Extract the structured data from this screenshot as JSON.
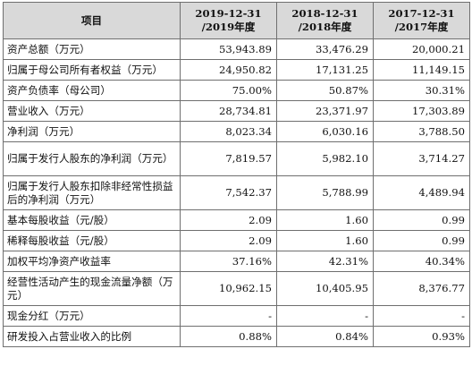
{
  "table": {
    "headers": {
      "item": "项目",
      "col1_line1": "2019-12-31",
      "col1_line2": "/2019年度",
      "col2_line1": "2018-12-31",
      "col2_line2": "/2018年度",
      "col3_line1": "2017-12-31",
      "col3_line2": "/2017年度"
    },
    "rows": [
      {
        "label": "资产总额（万元）",
        "v2019": "53,943.89",
        "v2018": "33,476.29",
        "v2017": "20,000.21"
      },
      {
        "label": "归属于母公司所有者权益（万元）",
        "v2019": "24,950.82",
        "v2018": "17,131.25",
        "v2017": "11,149.15"
      },
      {
        "label": "资产负债率（母公司）",
        "v2019": "75.00%",
        "v2018": "50.87%",
        "v2017": "30.31%"
      },
      {
        "label": "营业收入（万元）",
        "v2019": "28,734.81",
        "v2018": "23,371.97",
        "v2017": "17,303.89"
      },
      {
        "label": "净利润（万元）",
        "v2019": "8,023.34",
        "v2018": "6,030.16",
        "v2017": "3,788.50"
      },
      {
        "label": "归属于发行人股东的净利润（万元）",
        "v2019": "7,819.57",
        "v2018": "5,982.10",
        "v2017": "3,714.27"
      },
      {
        "label": "归属于发行人股东扣除非经常性损益后的净利润（万元）",
        "v2019": "7,542.37",
        "v2018": "5,788.99",
        "v2017": "4,489.94"
      },
      {
        "label": "基本每股收益（元/股）",
        "v2019": "2.09",
        "v2018": "1.60",
        "v2017": "0.99"
      },
      {
        "label": "稀释每股收益（元/股）",
        "v2019": "2.09",
        "v2018": "1.60",
        "v2017": "0.99"
      },
      {
        "label": "加权平均净资产收益率",
        "v2019": "37.16%",
        "v2018": "42.31%",
        "v2017": "40.34%"
      },
      {
        "label": "经营性活动产生的现金流量净额（万元）",
        "v2019": "10,962.15",
        "v2018": "10,405.95",
        "v2017": "8,376.77"
      },
      {
        "label": "现金分红（万元）",
        "v2019": "-",
        "v2018": "-",
        "v2017": "-"
      },
      {
        "label": "研发投入占营业收入的比例",
        "v2019": "0.88%",
        "v2018": "0.84%",
        "v2017": "0.93%"
      }
    ]
  }
}
